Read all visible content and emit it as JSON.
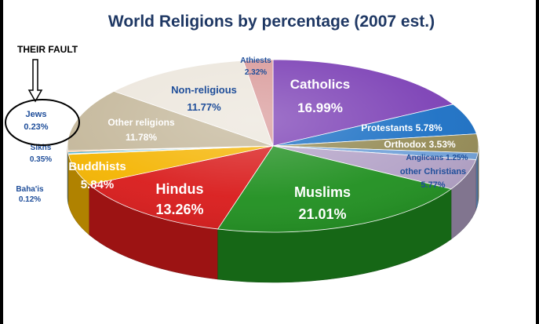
{
  "annotation": {
    "text": "THEIR FAULT"
  },
  "chart_data": {
    "type": "pie",
    "title": "World Religions by percentage (2007 est.)",
    "slices": [
      {
        "label": "Catholics",
        "value": 16.99,
        "display": "16.99%",
        "color": "#7b3fb5"
      },
      {
        "label": "Protestants",
        "value": 5.78,
        "display": "5.78%",
        "color": "#1a6fc4"
      },
      {
        "label": "Orthodox",
        "value": 3.53,
        "display": "3.53%",
        "color": "#948a54"
      },
      {
        "label": "Anglicans",
        "value": 1.25,
        "display": "1.25%",
        "color": "#6fa0d8"
      },
      {
        "label": "other Christians",
        "value": 5.77,
        "display": "5.77%",
        "color": "#b3a2c7"
      },
      {
        "label": "Muslims",
        "value": 21.01,
        "display": "21.01%",
        "color": "#1f8f1f"
      },
      {
        "label": "Hindus",
        "value": 13.26,
        "display": "13.26%",
        "color": "#d91a1a"
      },
      {
        "label": "Buddhists",
        "value": 5.84,
        "display": "5.84%",
        "color": "#f4b400"
      },
      {
        "label": "Baha'is",
        "value": 0.12,
        "display": "0.12%",
        "color": "#9bbb59"
      },
      {
        "label": "Sikhs",
        "value": 0.35,
        "display": "0.35%",
        "color": "#4bacc6"
      },
      {
        "label": "Jews",
        "value": 0.23,
        "display": "0.23%",
        "color": "#f79646"
      },
      {
        "label": "Other religions",
        "value": 11.78,
        "display": "11.78%",
        "color": "#c4b79a"
      },
      {
        "label": "Non-religious",
        "value": 11.77,
        "display": "11.77%",
        "color": "#ece6dc"
      },
      {
        "label": "Athiests",
        "value": 2.32,
        "display": "2.32%",
        "color": "#d99a9a"
      }
    ]
  }
}
